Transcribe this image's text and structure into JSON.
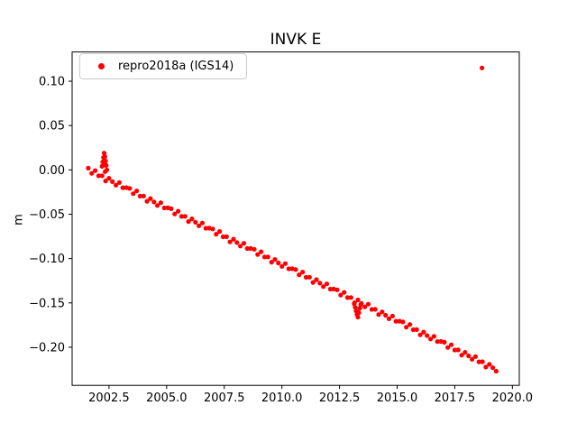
{
  "figure": {
    "background": "#ffffff"
  },
  "chart_data": {
    "type": "scatter",
    "title": "INVK E",
    "xlabel": "",
    "ylabel": "m",
    "legend_label": "repro2018a (IGS14)",
    "legend_position": "upper left",
    "marker": "dot",
    "marker_color": "#ff0000",
    "axes_color": "#000000",
    "grid": false,
    "xlim": [
      2000.9,
      2020.3
    ],
    "ylim": [
      -0.243,
      0.133
    ],
    "xticks": [
      2002.5,
      2005.0,
      2007.5,
      2010.0,
      2012.5,
      2015.0,
      2017.5,
      2020.0
    ],
    "yticks": [
      0.1,
      0.05,
      0.0,
      -0.05,
      -0.1,
      -0.15,
      -0.2
    ],
    "series": [
      {
        "name": "repro2018a (IGS14)",
        "color": "#ff0000",
        "x_start": 2001.6,
        "x_step": 0.15,
        "y": [
          0.002,
          -0.0039,
          -0.0008,
          -0.0067,
          -0.0066,
          -0.0125,
          -0.0094,
          -0.0133,
          -0.0173,
          -0.0142,
          -0.0201,
          -0.02,
          -0.0209,
          -0.0268,
          -0.0237,
          -0.0296,
          -0.0295,
          -0.0354,
          -0.0323,
          -0.0362,
          -0.0401,
          -0.037,
          -0.0429,
          -0.0428,
          -0.0438,
          -0.0497,
          -0.0466,
          -0.0525,
          -0.0524,
          -0.0583,
          -0.0552,
          -0.0591,
          -0.063,
          -0.0599,
          -0.0658,
          -0.0657,
          -0.0666,
          -0.0725,
          -0.0694,
          -0.0754,
          -0.0753,
          -0.0812,
          -0.0781,
          -0.082,
          -0.0859,
          -0.0828,
          -0.0887,
          -0.0886,
          -0.0895,
          -0.0954,
          -0.0923,
          -0.0982,
          -0.0981,
          -0.104,
          -0.101,
          -0.1049,
          -0.1088,
          -0.1057,
          -0.1116,
          -0.1115,
          -0.1124,
          -0.1183,
          -0.1152,
          -0.1211,
          -0.121,
          -0.1269,
          -0.1238,
          -0.1277,
          -0.1316,
          -0.1286,
          -0.1345,
          -0.1344,
          -0.1353,
          -0.1412,
          -0.1381,
          -0.144,
          -0.1439,
          -0.1498,
          -0.1467,
          -0.1506,
          -0.1545,
          -0.1514,
          -0.1573,
          -0.1572,
          -0.1631,
          -0.1601,
          -0.164,
          -0.1679,
          -0.1648,
          -0.1707,
          -0.1706,
          -0.1715,
          -0.1774,
          -0.1743,
          -0.1802,
          -0.1801,
          -0.186,
          -0.1829,
          -0.1868,
          -0.1907,
          -0.1877,
          -0.1936,
          -0.1935,
          -0.1944,
          -0.2003,
          -0.1972,
          -0.2031,
          -0.203,
          -0.2089,
          -0.2058,
          -0.2097,
          -0.2136,
          -0.2105,
          -0.2164,
          -0.2163,
          -0.2223,
          -0.2192,
          -0.2231,
          -0.227
        ],
        "extra_points": [
          [
            2002.2,
            0.004
          ],
          [
            2002.23,
            0.009
          ],
          [
            2002.26,
            0.014
          ],
          [
            2002.29,
            0.019
          ],
          [
            2002.32,
            0.015
          ],
          [
            2002.35,
            0.01
          ],
          [
            2002.38,
            0.005
          ],
          [
            2002.41,
            0.0
          ],
          [
            2002.3,
            0.006
          ],
          [
            2002.33,
            -0.002
          ],
          [
            2013.14,
            -0.151
          ],
          [
            2013.18,
            -0.155
          ],
          [
            2013.22,
            -0.159
          ],
          [
            2013.26,
            -0.163
          ],
          [
            2013.3,
            -0.166
          ],
          [
            2013.34,
            -0.161
          ],
          [
            2013.38,
            -0.156
          ],
          [
            2013.42,
            -0.152
          ]
        ],
        "outlier_point": [
          2018.68,
          0.115
        ]
      }
    ]
  }
}
